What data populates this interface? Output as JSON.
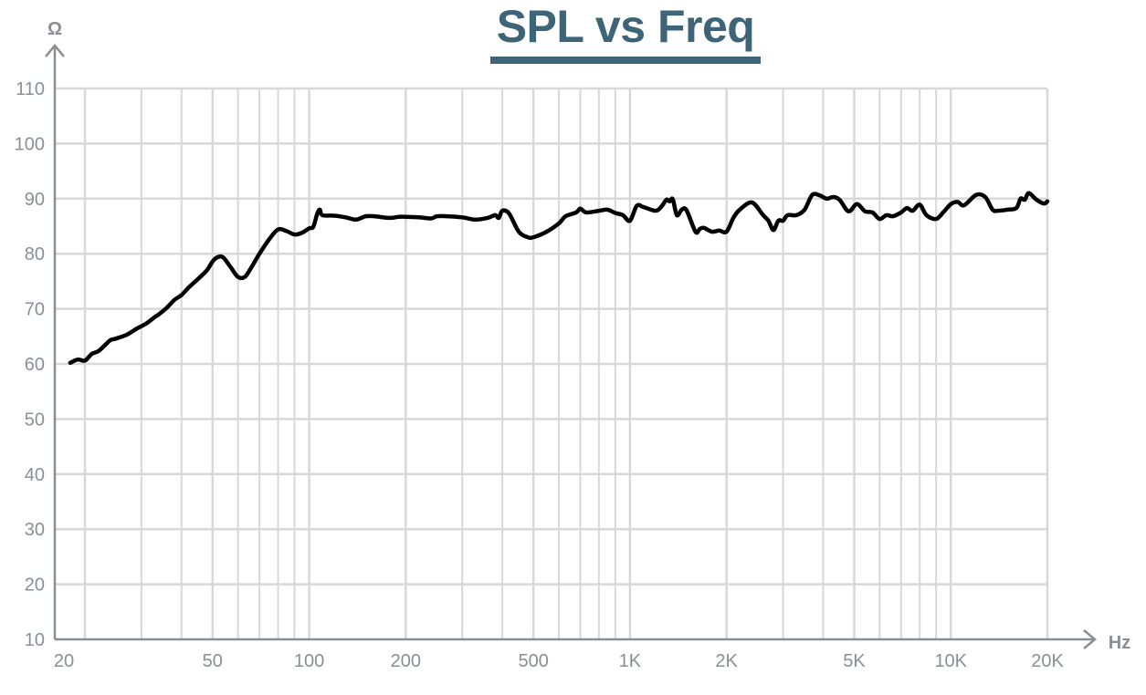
{
  "title": "SPL vs Freq",
  "colors": {
    "title": "#3e6478",
    "curve": "#000000",
    "grid": "#d8d8d8",
    "axis": "#8a8f95",
    "labels": "#8a8f95"
  },
  "chart_data": {
    "type": "line",
    "title": "SPL vs Freq",
    "xlabel": "Hz",
    "ylabel": "Ω",
    "x_scale": "log",
    "xlim": [
      18,
      20000
    ],
    "ylim": [
      10,
      110
    ],
    "grid": true,
    "legend": "none",
    "x_ticks": [
      {
        "value": 20,
        "label": "20"
      },
      {
        "value": 50,
        "label": "50"
      },
      {
        "value": 100,
        "label": "100"
      },
      {
        "value": 200,
        "label": "200"
      },
      {
        "value": 500,
        "label": "500"
      },
      {
        "value": 1000,
        "label": "1K"
      },
      {
        "value": 2000,
        "label": "2K"
      },
      {
        "value": 5000,
        "label": "5K"
      },
      {
        "value": 10000,
        "label": "10K"
      },
      {
        "value": 20000,
        "label": "20K"
      }
    ],
    "y_ticks": [
      10,
      20,
      30,
      40,
      50,
      60,
      70,
      80,
      90,
      100,
      110
    ],
    "series": [
      {
        "x": [
          18,
          19,
          20,
          21,
          22,
          23,
          24,
          25,
          27,
          29,
          31,
          33,
          34,
          36,
          38,
          40,
          42,
          45,
          48,
          50,
          52,
          54,
          57,
          60,
          63,
          66,
          70,
          75,
          80,
          85,
          90,
          95,
          100,
          103,
          106,
          108,
          110,
          120,
          130,
          140,
          150,
          160,
          170,
          180,
          190,
          200,
          220,
          240,
          250,
          270,
          300,
          330,
          360,
          380,
          390,
          400,
          420,
          450,
          480,
          500,
          550,
          600,
          630,
          680,
          700,
          730,
          800,
          850,
          900,
          950,
          1000,
          1050,
          1100,
          1200,
          1250,
          1300,
          1330,
          1360,
          1400,
          1450,
          1500,
          1600,
          1650,
          1700,
          1800,
          1900,
          2000,
          2100,
          2200,
          2400,
          2600,
          2700,
          2800,
          2900,
          3000,
          3100,
          3300,
          3500,
          3700,
          3900,
          4100,
          4300,
          4500,
          4800,
          5100,
          5400,
          5700,
          6000,
          6300,
          6600,
          7000,
          7300,
          7600,
          8000,
          8400,
          9000,
          9500,
          10000,
          10500,
          11000,
          12000,
          12800,
          13500,
          14000,
          15000,
          16000,
          16500,
          17000,
          17500,
          18500,
          19500,
          20000
        ],
        "y": [
          60.2,
          60.8,
          60.6,
          61.8,
          62.3,
          63.3,
          64.3,
          64.6,
          65.3,
          66.4,
          67.3,
          68.5,
          69.0,
          70.2,
          71.6,
          72.5,
          73.8,
          75.4,
          77.0,
          78.6,
          79.4,
          79.3,
          77.5,
          75.8,
          75.8,
          77.5,
          80.0,
          82.6,
          84.4,
          84.1,
          83.5,
          83.8,
          84.6,
          84.9,
          87.3,
          88.0,
          87.0,
          86.9,
          86.6,
          86.2,
          86.8,
          86.8,
          86.6,
          86.5,
          86.7,
          86.7,
          86.6,
          86.4,
          86.8,
          86.8,
          86.6,
          86.2,
          86.5,
          87.0,
          86.5,
          87.8,
          87.3,
          84.0,
          83.0,
          83.0,
          84.0,
          85.5,
          86.8,
          87.5,
          88.2,
          87.5,
          87.8,
          88.0,
          87.4,
          87.0,
          86.0,
          88.7,
          88.5,
          87.8,
          88.5,
          89.8,
          89.5,
          89.9,
          87.0,
          88.0,
          87.9,
          84.0,
          84.5,
          84.7,
          84.0,
          84.2,
          84.0,
          86.5,
          88.0,
          89.3,
          87.0,
          86.0,
          84.3,
          86.0,
          86.0,
          87.0,
          87.0,
          88.0,
          90.7,
          90.6,
          90.0,
          90.3,
          89.8,
          87.7,
          89.0,
          87.7,
          87.5,
          86.3,
          87.0,
          86.8,
          87.5,
          88.3,
          87.8,
          88.9,
          87.0,
          86.3,
          87.6,
          89.0,
          89.4,
          88.8,
          90.7,
          90.3,
          88.0,
          87.8,
          88.0,
          88.3,
          90.0,
          89.8,
          91.0,
          89.8,
          89.1,
          89.5
        ]
      }
    ]
  }
}
